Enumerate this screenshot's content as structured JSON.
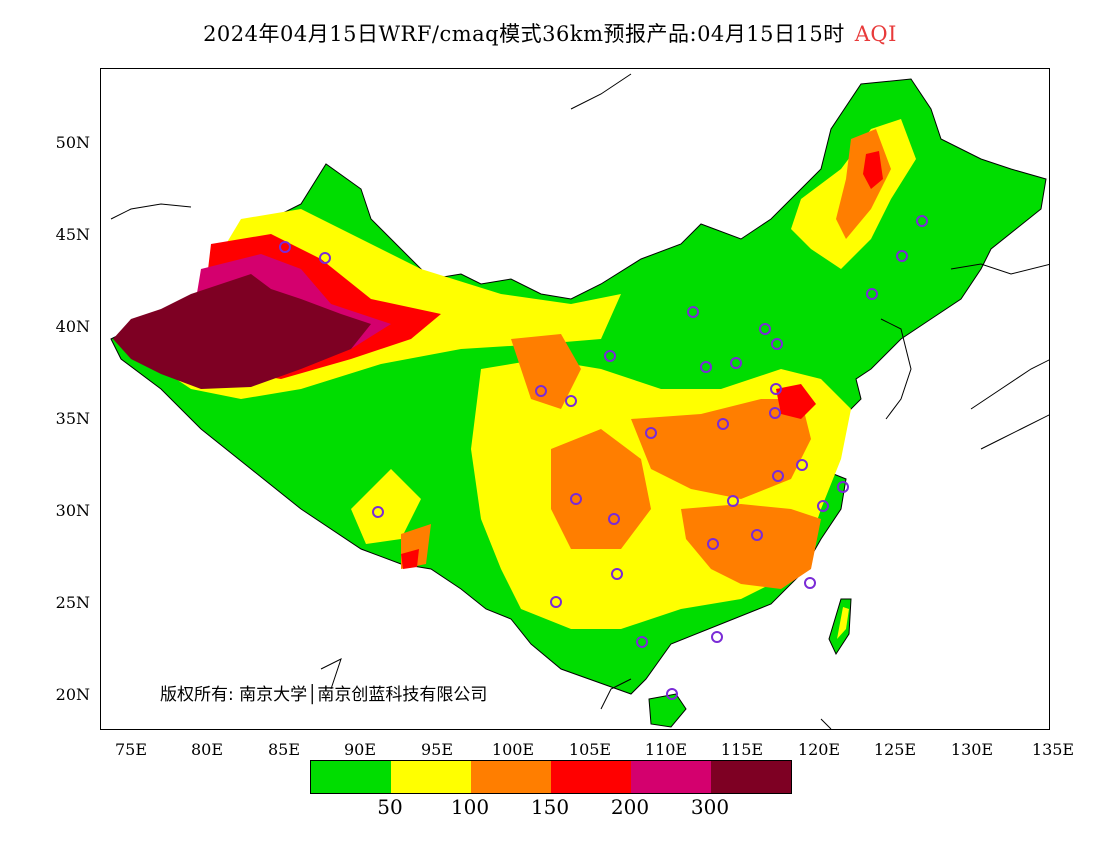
{
  "title": {
    "main": "2024年04月15日WRF/cmaq模式36km预报产品:04月15日15时",
    "variable": "AQI"
  },
  "axes": {
    "y_ticks": [
      "50N",
      "45N",
      "40N",
      "35N",
      "30N",
      "25N",
      "20N"
    ],
    "x_ticks": [
      "75E",
      "80E",
      "85E",
      "90E",
      "95E",
      "100E",
      "105E",
      "110E",
      "115E",
      "120E",
      "125E",
      "130E",
      "135E"
    ]
  },
  "copyright": "版权所有: 南京大学│南京创蓝科技有限公司",
  "legend": {
    "colors": [
      "#00dd00",
      "#ffff00",
      "#ff7e00",
      "#ff0000",
      "#d4006e",
      "#7e0023"
    ],
    "labels": [
      "50",
      "100",
      "150",
      "200",
      "300"
    ]
  },
  "colors": {
    "land_outline": "#000000",
    "station_marker": "#7a2bd6",
    "title_accent": "#e83a3a"
  }
}
